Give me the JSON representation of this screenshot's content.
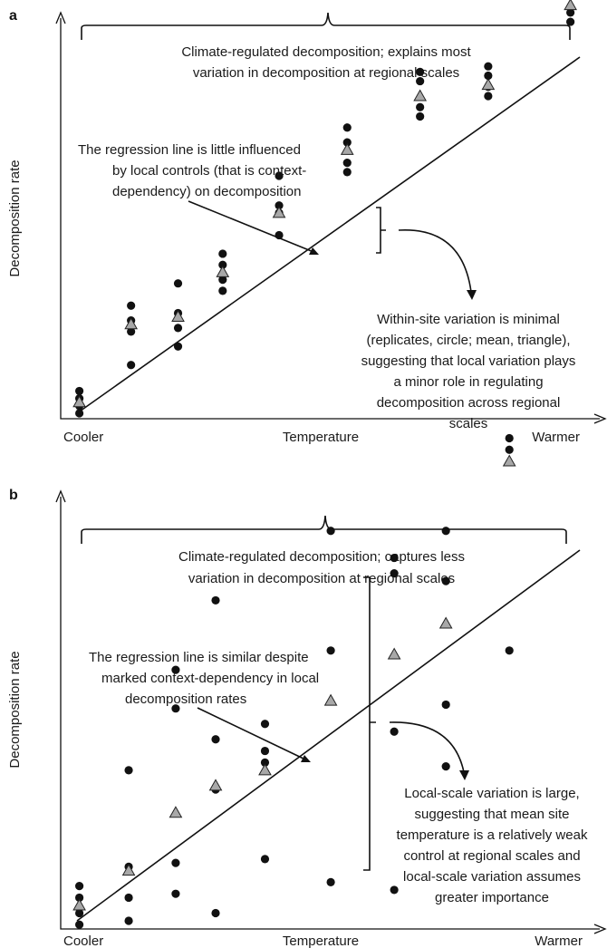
{
  "chart_data": [
    {
      "type": "scatter",
      "panel": "a",
      "xlabel": "Temperature",
      "ylabel": "Decomposition rate",
      "x_tick_left": "Cooler",
      "x_tick_right": "Warmer",
      "bracket_text": [
        "Climate-regulated decomposition; explains most",
        "variation in decomposition at regional scales"
      ],
      "annotation_line": [
        "The regression line is little influenced",
        "by local controls (that is context-",
        "dependency) on decomposition"
      ],
      "annotation_variation": [
        "Within-site variation is minimal",
        "(replicates, circle; mean, triangle),",
        "suggesting that local variation plays",
        "a minor role in regulating",
        "decomposition across regional",
        "scales"
      ],
      "regression": {
        "x0": 0.0,
        "y0": 0.2,
        "x1": 10.7,
        "y1": 9.8
      },
      "sites": [
        {
          "x": 0.05,
          "replicates": [
            0.2,
            0.4,
            0.6,
            0.8
          ],
          "mean": 0.5
        },
        {
          "x": 1.15,
          "replicates": [
            1.5,
            2.4,
            2.7,
            3.1
          ],
          "mean": 2.6
        },
        {
          "x": 2.15,
          "replicates": [
            2.0,
            2.5,
            2.9,
            3.7
          ],
          "mean": 2.8
        },
        {
          "x": 3.1,
          "replicates": [
            3.5,
            3.8,
            4.2,
            4.5
          ],
          "mean": 4.0
        },
        {
          "x": 4.3,
          "replicates": [
            5.0,
            5.6,
            5.8,
            6.6
          ],
          "mean": 5.6
        },
        {
          "x": 5.75,
          "replicates": [
            6.7,
            6.95,
            7.5,
            7.9
          ],
          "mean": 7.3
        },
        {
          "x": 7.3,
          "replicates": [
            8.2,
            8.45,
            9.15,
            9.4
          ],
          "mean": 8.75
        },
        {
          "x": 8.75,
          "replicates": [
            8.75,
            9.0,
            9.3,
            9.55
          ],
          "mean": 9.05
        },
        {
          "x": 10.5,
          "replicates": [
            10.75,
            11.0,
            11.65,
            11.85
          ],
          "mean": 11.2
        }
      ]
    },
    {
      "type": "scatter",
      "panel": "b",
      "xlabel": "Temperature",
      "ylabel": "Decomposition rate",
      "x_tick_left": "Cooler",
      "x_tick_right": "Warmer",
      "bracket_text": [
        "Climate-regulated decomposition; captures less",
        "variation in decomposition at regional scales"
      ],
      "annotation_line": [
        "The regression line is similar despite",
        "marked context-dependency in local",
        "decomposition rates"
      ],
      "annotation_variation": [
        "Local-scale variation is large,",
        "suggesting that mean site",
        "temperature is a relatively weak",
        "control at regional scales and",
        "local-scale variation assumes",
        "greater importance"
      ],
      "regression": {
        "x0": 0.0,
        "y0": 0.2,
        "x1": 10.7,
        "y1": 9.8
      },
      "sites": [
        {
          "x": 0.05,
          "replicates": [
            0.1,
            0.4,
            0.8,
            1.1
          ],
          "mean": 0.6
        },
        {
          "x": 1.1,
          "replicates": [
            0.2,
            0.8,
            1.6,
            4.1
          ],
          "mean": 1.5
        },
        {
          "x": 2.1,
          "replicates": [
            0.9,
            1.7,
            5.7,
            6.7
          ],
          "mean": 3.0
        },
        {
          "x": 2.95,
          "replicates": [
            0.4,
            3.6,
            4.9,
            8.5
          ],
          "mean": 3.7
        },
        {
          "x": 4.0,
          "replicates": [
            1.8,
            4.3,
            4.6,
            5.3
          ],
          "mean": 4.1
        },
        {
          "x": 5.4,
          "replicates": [
            1.2,
            7.2,
            10.3
          ],
          "mean": 5.9
        },
        {
          "x": 6.75,
          "replicates": [
            1.0,
            5.1,
            9.2,
            9.6
          ],
          "mean": 7.1
        },
        {
          "x": 7.85,
          "replicates": [
            4.2,
            5.8,
            9.0,
            10.3
          ],
          "mean": 7.9
        },
        {
          "x": 9.2,
          "replicates": [
            7.2,
            12.4,
            12.7
          ],
          "mean": 12.1
        }
      ]
    }
  ]
}
